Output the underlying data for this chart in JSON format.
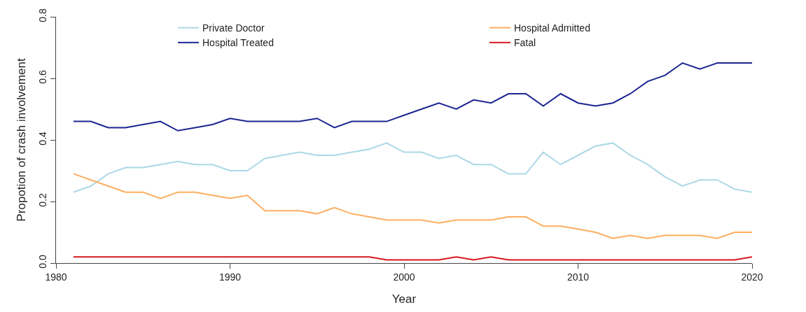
{
  "chart_data": {
    "type": "line",
    "xlabel": "Year",
    "ylabel": "Propotion of crash involvement",
    "x": [
      1981,
      1982,
      1983,
      1984,
      1985,
      1986,
      1987,
      1988,
      1989,
      1990,
      1991,
      1992,
      1993,
      1994,
      1995,
      1996,
      1997,
      1998,
      1999,
      2000,
      2001,
      2002,
      2003,
      2004,
      2005,
      2006,
      2007,
      2008,
      2009,
      2010,
      2011,
      2012,
      2013,
      2014,
      2015,
      2016,
      2017,
      2018,
      2019,
      2020
    ],
    "series": [
      {
        "name": "Private Doctor",
        "color": "#add8e6",
        "values": [
          0.23,
          0.25,
          0.29,
          0.31,
          0.31,
          0.32,
          0.33,
          0.32,
          0.32,
          0.3,
          0.3,
          0.34,
          0.35,
          0.36,
          0.35,
          0.35,
          0.36,
          0.37,
          0.39,
          0.36,
          0.36,
          0.34,
          0.35,
          0.32,
          0.32,
          0.29,
          0.29,
          0.36,
          0.32,
          0.35,
          0.38,
          0.39,
          0.35,
          0.32,
          0.28,
          0.25,
          0.27,
          0.27,
          0.24,
          0.23
        ]
      },
      {
        "name": "Hospital Admitted",
        "color": "#fdae61",
        "values": [
          0.29,
          0.27,
          0.25,
          0.23,
          0.23,
          0.21,
          0.23,
          0.23,
          0.22,
          0.21,
          0.22,
          0.17,
          0.17,
          0.17,
          0.16,
          0.18,
          0.16,
          0.15,
          0.14,
          0.14,
          0.14,
          0.13,
          0.14,
          0.14,
          0.14,
          0.15,
          0.15,
          0.12,
          0.12,
          0.11,
          0.1,
          0.08,
          0.09,
          0.08,
          0.09,
          0.09,
          0.09,
          0.08,
          0.1,
          0.1
        ]
      },
      {
        "name": "Hospital Treated",
        "color": "#1c2592",
        "values": [
          0.46,
          0.46,
          0.44,
          0.44,
          0.45,
          0.46,
          0.43,
          0.44,
          0.45,
          0.47,
          0.46,
          0.46,
          0.46,
          0.46,
          0.47,
          0.44,
          0.46,
          0.46,
          0.46,
          0.48,
          0.5,
          0.52,
          0.5,
          0.53,
          0.52,
          0.55,
          0.55,
          0.51,
          0.55,
          0.52,
          0.51,
          0.52,
          0.55,
          0.59,
          0.61,
          0.65,
          0.63,
          0.65,
          0.65,
          0.65
        ]
      },
      {
        "name": "Fatal",
        "color": "#d7191c",
        "values": [
          0.02,
          0.02,
          0.02,
          0.02,
          0.02,
          0.02,
          0.02,
          0.02,
          0.02,
          0.02,
          0.02,
          0.02,
          0.02,
          0.02,
          0.02,
          0.02,
          0.02,
          0.02,
          0.01,
          0.01,
          0.01,
          0.01,
          0.02,
          0.01,
          0.02,
          0.01,
          0.01,
          0.01,
          0.01,
          0.01,
          0.01,
          0.01,
          0.01,
          0.01,
          0.01,
          0.01,
          0.01,
          0.01,
          0.01,
          0.02
        ]
      }
    ],
    "xlim": [
      1980,
      2020
    ],
    "xticks": [
      1980,
      1990,
      2000,
      2010,
      2020
    ],
    "ylim": [
      0,
      0.8
    ],
    "yticks": [
      {
        "value": 0,
        "label": "0.0"
      },
      {
        "value": 0.2,
        "label": "0.2"
      },
      {
        "value": 0.4,
        "label": "0.4"
      },
      {
        "value": 0.6,
        "label": "0.6"
      },
      {
        "value": 0.8,
        "label": "0.8"
      }
    ],
    "legend": "top",
    "marker": "none",
    "line_style": "solid"
  }
}
